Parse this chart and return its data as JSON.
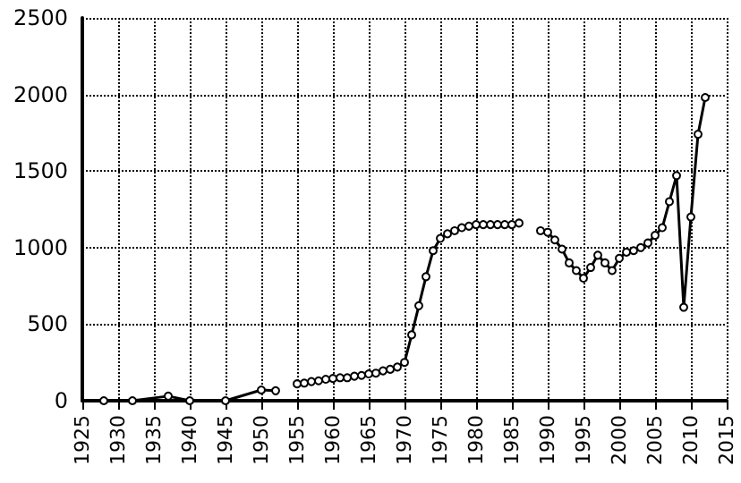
{
  "chart_data": {
    "type": "line",
    "marker": "circle",
    "line_style": "solid",
    "grid": true,
    "xlim": [
      1925,
      2015
    ],
    "xticks": [
      1925,
      1930,
      1935,
      1940,
      1945,
      1950,
      1955,
      1960,
      1965,
      1970,
      1975,
      1980,
      1985,
      1990,
      1995,
      2000,
      2005,
      2010,
      2015
    ],
    "ylim": [
      0,
      2500
    ],
    "yticks": [
      0,
      500,
      1000,
      1500,
      2000,
      2500
    ],
    "series": [
      {
        "color": "#000000",
        "x": [
          1928,
          1932,
          1937,
          1940,
          1945,
          1950,
          1952,
          1953,
          1955,
          1956,
          1957,
          1958,
          1959,
          1960,
          1961,
          1962,
          1963,
          1964,
          1965,
          1966,
          1967,
          1968,
          1969,
          1970,
          1971,
          1972,
          1973,
          1974,
          1975,
          1976,
          1977,
          1978,
          1979,
          1980,
          1981,
          1982,
          1983,
          1984,
          1985,
          1986,
          1987,
          1989,
          1990,
          1991,
          1992,
          1993,
          1994,
          1995,
          1996,
          1997,
          1998,
          1999,
          2000,
          2001,
          2002,
          2003,
          2004,
          2005,
          2006,
          2007,
          2008,
          2009,
          2010,
          2011,
          2012
        ],
        "values": [
          0,
          0,
          30,
          0,
          0,
          70,
          65,
          null,
          110,
          115,
          125,
          130,
          140,
          145,
          150,
          150,
          160,
          165,
          175,
          180,
          195,
          205,
          220,
          250,
          430,
          620,
          810,
          980,
          1060,
          1090,
          1110,
          1130,
          1140,
          1150,
          1150,
          1150,
          1150,
          1150,
          1150,
          1160,
          null,
          1110,
          1100,
          1050,
          990,
          900,
          850,
          800,
          870,
          950,
          900,
          850,
          930,
          970,
          980,
          1000,
          1030,
          1080,
          1130,
          1300,
          1470,
          610,
          1200,
          1740,
          1980
        ]
      }
    ]
  }
}
